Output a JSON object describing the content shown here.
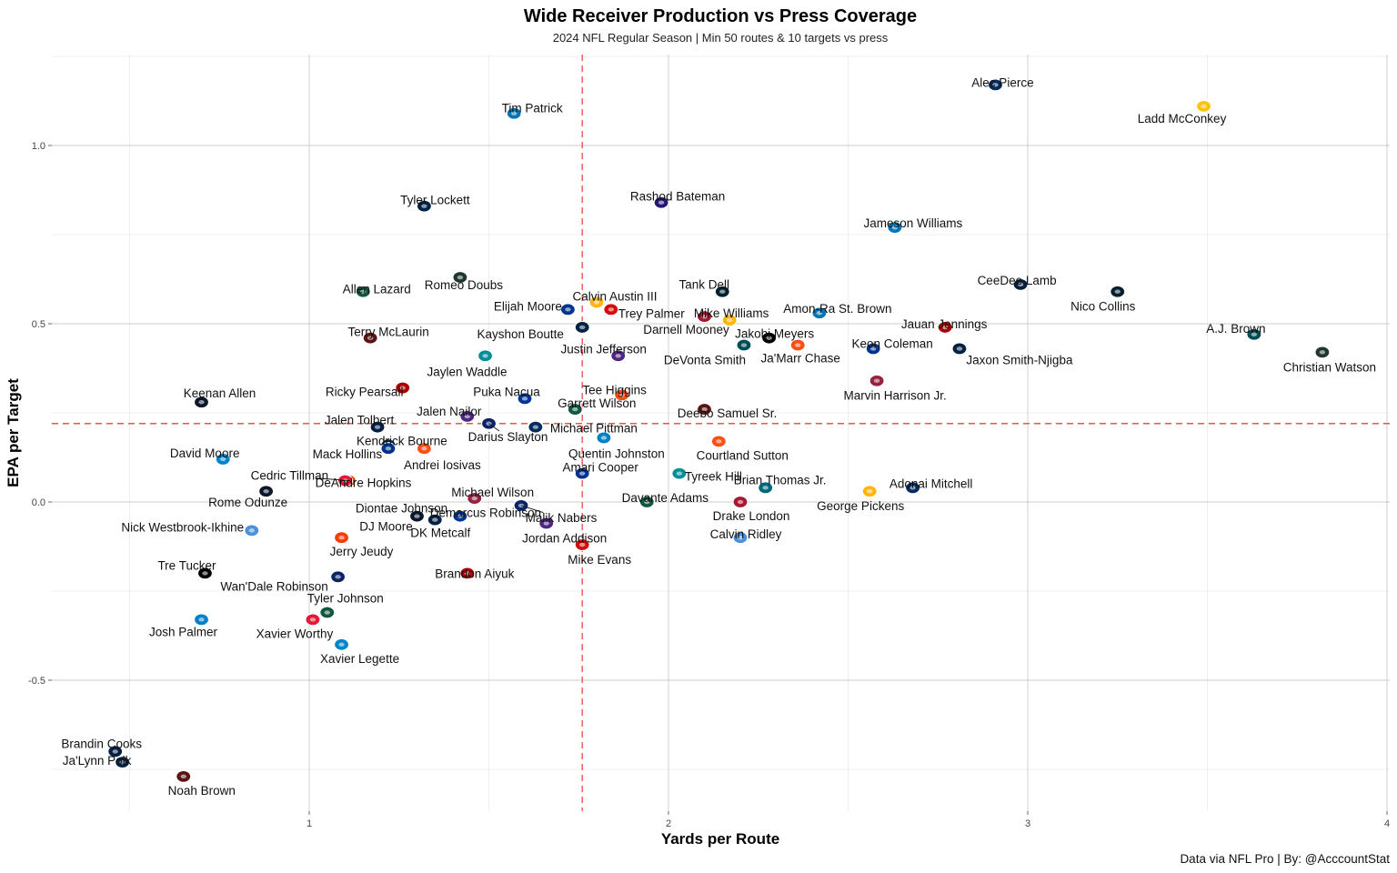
{
  "chart_data": {
    "type": "scatter",
    "title": "Wide Receiver Production vs Press Coverage",
    "subtitle": "2024 NFL Regular Season | Min 50 routes & 10 targets vs press",
    "xlabel": "Yards per Route",
    "ylabel": "EPA per Target",
    "caption": "Data via NFL Pro | By: @AcccountStat",
    "xlim": [
      0.25,
      4.0
    ],
    "ylim": [
      -0.87,
      1.25
    ],
    "x_ticks": [
      1,
      2,
      3,
      4
    ],
    "x_tick_labels": [
      "1",
      "2",
      "3",
      "4"
    ],
    "y_ticks": [
      1.0,
      0.5,
      0.0,
      -0.5
    ],
    "y_tick_labels": [
      "1.0",
      "0.5",
      "0.0",
      "-0.5"
    ],
    "reference_lines": {
      "x": 1.76,
      "y": 0.22
    },
    "points": [
      {
        "name": "Alec Pierce",
        "team": "IND",
        "x": 2.91,
        "y": 1.17,
        "color": "#002C5F"
      },
      {
        "name": "Ladd McConkey",
        "team": "LAC",
        "x": 3.49,
        "y": 1.11,
        "color": "#FFC20E"
      },
      {
        "name": "Tim Patrick",
        "team": "DET",
        "x": 1.57,
        "y": 1.09,
        "color": "#0076B6"
      },
      {
        "name": "Rashod Bateman",
        "team": "BAL",
        "x": 1.98,
        "y": 0.84,
        "color": "#241773"
      },
      {
        "name": "Tyler Lockett",
        "team": "SEA",
        "x": 1.32,
        "y": 0.83,
        "color": "#002244"
      },
      {
        "name": "Jameson Williams",
        "team": "DET",
        "x": 2.63,
        "y": 0.77,
        "color": "#0076B6"
      },
      {
        "name": "Romeo Doubs",
        "team": "GB",
        "x": 1.42,
        "y": 0.63,
        "color": "#203731"
      },
      {
        "name": "CeeDee Lamb",
        "team": "DAL",
        "x": 2.98,
        "y": 0.61,
        "color": "#041E42"
      },
      {
        "name": "Allen Lazard",
        "team": "NYJ",
        "x": 1.15,
        "y": 0.59,
        "color": "#125740"
      },
      {
        "name": "Tank Dell",
        "team": "HOU",
        "x": 2.15,
        "y": 0.59,
        "color": "#03202F"
      },
      {
        "name": "Nico Collins",
        "team": "HOU",
        "x": 3.25,
        "y": 0.59,
        "color": "#03202F"
      },
      {
        "name": "Calvin Austin III",
        "team": "PIT",
        "x": 1.8,
        "y": 0.56,
        "color": "#FFB612"
      },
      {
        "name": "Trey Palmer",
        "team": "TB",
        "x": 1.84,
        "y": 0.54,
        "color": "#D50A0A"
      },
      {
        "name": "Elijah Moore",
        "team": "BUF",
        "x": 1.72,
        "y": 0.54,
        "color": "#00338D"
      },
      {
        "name": "Amon-Ra St. Brown",
        "team": "DET",
        "x": 2.42,
        "y": 0.53,
        "color": "#0076B6"
      },
      {
        "name": "Mike Williams",
        "team": "PIT",
        "x": 2.17,
        "y": 0.51,
        "color": "#FFB612"
      },
      {
        "name": "Darnell Mooney",
        "team": "ATL",
        "x": 2.1,
        "y": 0.52,
        "color": "#A71930"
      },
      {
        "name": "Jauan Jennings",
        "team": "SF",
        "x": 2.77,
        "y": 0.49,
        "color": "#AA0000"
      },
      {
        "name": "Kayshon Boutte",
        "team": "NE",
        "x": 1.76,
        "y": 0.49,
        "color": "#002244"
      },
      {
        "name": "Terry McLaurin",
        "team": "WAS",
        "x": 1.17,
        "y": 0.46,
        "color": "#5A1414"
      },
      {
        "name": "Jakobi Meyers",
        "team": "LV",
        "x": 2.28,
        "y": 0.46,
        "color": "#000000"
      },
      {
        "name": "A.J. Brown",
        "team": "PHI",
        "x": 3.63,
        "y": 0.47,
        "color": "#004C54"
      },
      {
        "name": "Ja'Marr Chase",
        "team": "CIN",
        "x": 2.36,
        "y": 0.44,
        "color": "#FB4F14"
      },
      {
        "name": "DeVonta Smith",
        "team": "PHI",
        "x": 2.21,
        "y": 0.44,
        "color": "#004C54"
      },
      {
        "name": "Keon Coleman",
        "team": "BUF",
        "x": 2.57,
        "y": 0.43,
        "color": "#00338D"
      },
      {
        "name": "Jaxon Smith-Njigba",
        "team": "SEA",
        "x": 2.81,
        "y": 0.43,
        "color": "#002244"
      },
      {
        "name": "Christian Watson",
        "team": "GB",
        "x": 3.82,
        "y": 0.42,
        "color": "#203731"
      },
      {
        "name": "Justin Jefferson",
        "team": "MIN",
        "x": 1.86,
        "y": 0.41,
        "color": "#4F2683"
      },
      {
        "name": "Jaylen Waddle",
        "team": "MIA",
        "x": 1.49,
        "y": 0.41,
        "color": "#008E97"
      },
      {
        "name": "Marvin Harrison Jr.",
        "team": "ARI",
        "x": 2.58,
        "y": 0.34,
        "color": "#97233F"
      },
      {
        "name": "Ricky Pearsall",
        "team": "SF",
        "x": 1.26,
        "y": 0.32,
        "color": "#AA0000"
      },
      {
        "name": "Tee Higgins",
        "team": "CIN",
        "x": 1.87,
        "y": 0.3,
        "color": "#FB4F14"
      },
      {
        "name": "Puka Nacua",
        "team": "LAR",
        "x": 1.6,
        "y": 0.29,
        "color": "#003594"
      },
      {
        "name": "Keenan Allen",
        "team": "CHI",
        "x": 0.7,
        "y": 0.28,
        "color": "#0B162A"
      },
      {
        "name": "Garrett Wilson",
        "team": "NYJ",
        "x": 1.74,
        "y": 0.26,
        "color": "#125740"
      },
      {
        "name": "Deebo Samuel Sr.",
        "team": "WAS",
        "x": 2.1,
        "y": 0.26,
        "color": "#5A1414"
      },
      {
        "name": "Jalen Nailor",
        "team": "MIN",
        "x": 1.44,
        "y": 0.24,
        "color": "#4F2683"
      },
      {
        "name": "Darius Slayton",
        "team": "NYG",
        "x": 1.5,
        "y": 0.22,
        "color": "#0B2265"
      },
      {
        "name": "Michael Pittman",
        "team": "IND",
        "x": 1.63,
        "y": 0.21,
        "color": "#002C5F"
      },
      {
        "name": "Jalen Tolbert",
        "team": "DAL",
        "x": 1.19,
        "y": 0.21,
        "color": "#041E42"
      },
      {
        "name": "Quentin Johnston",
        "team": "LAC",
        "x": 1.82,
        "y": 0.18,
        "color": "#0080C6"
      },
      {
        "name": "Kendrick Bourne",
        "team": "NE",
        "x": 1.22,
        "y": 0.16,
        "color": "#002244"
      },
      {
        "name": "Courtland Sutton",
        "team": "DEN",
        "x": 2.14,
        "y": 0.17,
        "color": "#FB4F14"
      },
      {
        "name": "Andrei Iosivas",
        "team": "CIN",
        "x": 1.32,
        "y": 0.15,
        "color": "#FB4F14"
      },
      {
        "name": "David Moore",
        "team": "CAR",
        "x": 0.76,
        "y": 0.12,
        "color": "#0085CA"
      },
      {
        "name": "Mack Hollins",
        "team": "BUF",
        "x": 1.22,
        "y": 0.15,
        "color": "#00338D"
      },
      {
        "name": "Amari Cooper",
        "team": "BUF",
        "x": 1.76,
        "y": 0.08,
        "color": "#00338D"
      },
      {
        "name": "Tyreek Hill",
        "team": "MIA",
        "x": 2.03,
        "y": 0.08,
        "color": "#008E97"
      },
      {
        "name": "Cedric Tillman",
        "team": "CLE",
        "x": 1.11,
        "y": 0.06,
        "color": "#FF3C00"
      },
      {
        "name": "DeAndre Hopkins",
        "team": "KC",
        "x": 1.1,
        "y": 0.06,
        "color": "#E31837"
      },
      {
        "name": "Brian Thomas Jr.",
        "team": "JAX",
        "x": 2.27,
        "y": 0.04,
        "color": "#006778"
      },
      {
        "name": "Rome Odunze",
        "team": "CHI",
        "x": 0.88,
        "y": 0.03,
        "color": "#0B162A"
      },
      {
        "name": "Adonai Mitchell",
        "team": "IND",
        "x": 2.68,
        "y": 0.04,
        "color": "#002C5F"
      },
      {
        "name": "Michael Wilson",
        "team": "ARI",
        "x": 1.46,
        "y": 0.01,
        "color": "#97233F"
      },
      {
        "name": "George Pickens",
        "team": "PIT",
        "x": 2.56,
        "y": 0.03,
        "color": "#FFB612"
      },
      {
        "name": "Davante Adams",
        "team": "NYJ",
        "x": 1.94,
        "y": 0.0,
        "color": "#125740"
      },
      {
        "name": "Drake London",
        "team": "ATL",
        "x": 2.2,
        "y": 0.0,
        "color": "#A71930"
      },
      {
        "name": "Malik Nabers",
        "team": "NYG",
        "x": 1.59,
        "y": -0.01,
        "color": "#0B2265"
      },
      {
        "name": "Demarcus Robinson",
        "team": "LAR",
        "x": 1.42,
        "y": -0.04,
        "color": "#003594"
      },
      {
        "name": "Diontae Johnson",
        "team": "BAL",
        "x": 1.3,
        "y": -0.04,
        "color": "#241773"
      },
      {
        "name": "DK Metcalf",
        "team": "SEA",
        "x": 1.35,
        "y": -0.05,
        "color": "#002244"
      },
      {
        "name": "DJ Moore",
        "team": "CHI",
        "x": 1.3,
        "y": -0.04,
        "color": "#0B162A"
      },
      {
        "name": "Jordan Addison",
        "team": "MIN",
        "x": 1.66,
        "y": -0.06,
        "color": "#4F2683"
      },
      {
        "name": "Nick Westbrook-Ikhine",
        "team": "TEN",
        "x": 0.84,
        "y": -0.08,
        "color": "#4B92DB"
      },
      {
        "name": "Calvin Ridley",
        "team": "TEN",
        "x": 2.2,
        "y": -0.1,
        "color": "#4B92DB"
      },
      {
        "name": "Jerry Jeudy",
        "team": "CLE",
        "x": 1.09,
        "y": -0.1,
        "color": "#FF3C00"
      },
      {
        "name": "Mike Evans",
        "team": "TB",
        "x": 1.76,
        "y": -0.12,
        "color": "#D50A0A"
      },
      {
        "name": "Tre Tucker",
        "team": "LV",
        "x": 0.71,
        "y": -0.2,
        "color": "#000000"
      },
      {
        "name": "Brandon Aiyuk",
        "team": "SF",
        "x": 1.44,
        "y": -0.2,
        "color": "#AA0000"
      },
      {
        "name": "Wan'Dale Robinson",
        "team": "NYG",
        "x": 1.08,
        "y": -0.21,
        "color": "#0B2265"
      },
      {
        "name": "Tyler Johnson",
        "team": "NYJ",
        "x": 1.05,
        "y": -0.31,
        "color": "#125740"
      },
      {
        "name": "Josh Palmer",
        "team": "LAC",
        "x": 0.7,
        "y": -0.33,
        "color": "#0080C6"
      },
      {
        "name": "Xavier Worthy",
        "team": "KC",
        "x": 1.01,
        "y": -0.33,
        "color": "#E31837"
      },
      {
        "name": "Xavier Legette",
        "team": "CAR",
        "x": 1.09,
        "y": -0.4,
        "color": "#0085CA"
      },
      {
        "name": "Brandin Cooks",
        "team": "DAL",
        "x": 0.46,
        "y": -0.7,
        "color": "#041E42"
      },
      {
        "name": "Ja'Lynn Polk",
        "team": "NE",
        "x": 0.48,
        "y": -0.73,
        "color": "#002244"
      },
      {
        "name": "Noah Brown",
        "team": "WAS",
        "x": 0.65,
        "y": -0.77,
        "color": "#5A1414"
      }
    ]
  }
}
